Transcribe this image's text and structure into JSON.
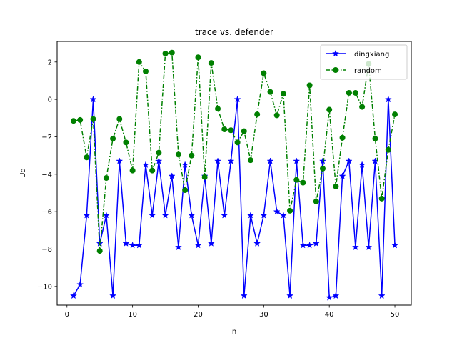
{
  "chart_data": {
    "type": "line",
    "title": "trace vs. defender",
    "xlabel": "n",
    "ylabel": "Ud",
    "xlim": [
      -1.5,
      52.5
    ],
    "ylim": [
      -11.0,
      3.1
    ],
    "xticks": [
      0,
      10,
      20,
      30,
      40,
      50
    ],
    "xtick_labels": [
      "0",
      "10",
      "20",
      "30",
      "40",
      "50"
    ],
    "yticks": [
      -10,
      -8,
      -6,
      -4,
      -2,
      0,
      2
    ],
    "ytick_labels": [
      "−10",
      "−8",
      "−6",
      "−4",
      "−2",
      "0",
      "2"
    ],
    "grid": false,
    "legend_position": "top-right",
    "x": [
      1,
      2,
      3,
      4,
      5,
      6,
      7,
      8,
      9,
      10,
      11,
      12,
      13,
      14,
      15,
      16,
      17,
      18,
      19,
      20,
      21,
      22,
      23,
      24,
      25,
      26,
      27,
      28,
      29,
      30,
      31,
      32,
      33,
      34,
      35,
      36,
      37,
      38,
      39,
      40,
      41,
      42,
      43,
      44,
      45,
      46,
      47,
      48,
      49,
      50
    ],
    "series": [
      {
        "name": "dingxiang",
        "color": "#0000ff",
        "linestyle": "solid",
        "marker": "star",
        "values": [
          -10.5,
          -9.9,
          -6.2,
          0.0,
          -7.7,
          -6.2,
          -10.5,
          -3.3,
          -7.7,
          -7.8,
          -7.8,
          -3.5,
          -6.2,
          -3.3,
          -6.2,
          -4.1,
          -7.9,
          -3.5,
          -6.2,
          -7.8,
          -4.1,
          -7.7,
          -3.3,
          -6.2,
          -3.3,
          0.0,
          -10.5,
          -6.2,
          -7.7,
          -6.2,
          -3.3,
          -6.0,
          -6.2,
          -10.5,
          -3.3,
          -7.8,
          -7.8,
          -7.7,
          -3.3,
          -10.6,
          -10.5,
          -4.1,
          -3.3,
          -7.9,
          -3.5,
          -7.9,
          -3.3,
          -10.5,
          0.0,
          -7.8
        ]
      },
      {
        "name": "random",
        "color": "#008000",
        "linestyle": "dashdot",
        "marker": "circle",
        "values": [
          -1.15,
          -1.1,
          -3.1,
          -1.05,
          -8.1,
          -4.2,
          -2.1,
          -1.05,
          -2.3,
          -3.8,
          2.0,
          1.5,
          -3.8,
          -2.85,
          2.45,
          2.5,
          -2.95,
          -4.85,
          -3.0,
          2.25,
          -4.15,
          1.95,
          -0.5,
          -1.6,
          -1.65,
          -2.3,
          -1.7,
          -3.25,
          -0.8,
          1.4,
          0.4,
          -0.85,
          0.3,
          -5.95,
          -4.3,
          -4.45,
          0.75,
          -5.45,
          -3.7,
          -0.55,
          -4.65,
          -2.05,
          0.35,
          0.35,
          -0.4,
          1.9,
          -2.1,
          -5.3,
          -2.7,
          -0.8
        ]
      }
    ]
  }
}
